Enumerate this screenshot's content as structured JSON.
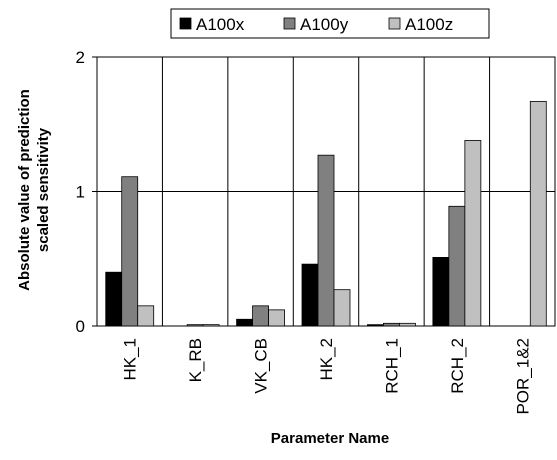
{
  "chart_data": {
    "type": "bar",
    "title": "",
    "xlabel": "Parameter Name",
    "ylabel_lines": [
      "Absolute value of prediction",
      "scaled sensitivity"
    ],
    "categories": [
      "HK_1",
      "K_RB",
      "VK_CB",
      "HK_2",
      "RCH_1",
      "RCH_2",
      "POR_1&2"
    ],
    "series": [
      {
        "name": "A100x",
        "color": "#000000",
        "values": [
          0.4,
          0.0,
          0.05,
          0.46,
          0.01,
          0.51,
          0.0
        ]
      },
      {
        "name": "A100y",
        "color": "#808080",
        "values": [
          1.11,
          0.01,
          0.15,
          1.27,
          0.02,
          0.89,
          0.0
        ]
      },
      {
        "name": "A100z",
        "color": "#c0c0c0",
        "values": [
          0.15,
          0.01,
          0.12,
          0.27,
          0.02,
          1.38,
          1.67
        ]
      }
    ],
    "ylim": [
      0,
      2
    ],
    "yticks": [
      "0",
      "1",
      "2"
    ],
    "grid": "horizontal at 1 and vertical category dividers",
    "legend_position": "top"
  }
}
